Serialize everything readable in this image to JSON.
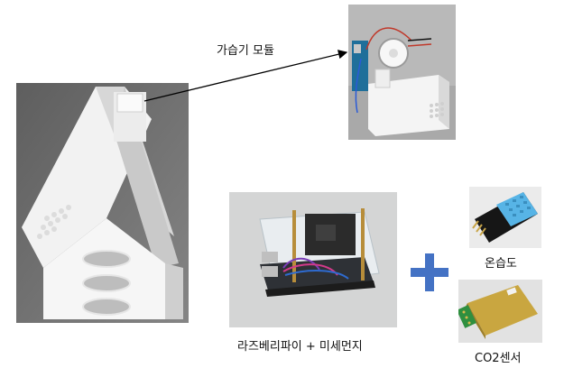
{
  "labels": {
    "humidifier_module": "가습기 모듈",
    "rpi_dust": "라즈베리파이 + 미세먼지",
    "temp_humidity": "온습도",
    "co2_sensor": "CO2센서"
  },
  "colors": {
    "plus": "#4472c4",
    "arrow": "#000000"
  },
  "icons": {
    "plus": "plus-icon",
    "arrow": "arrow-icon"
  }
}
